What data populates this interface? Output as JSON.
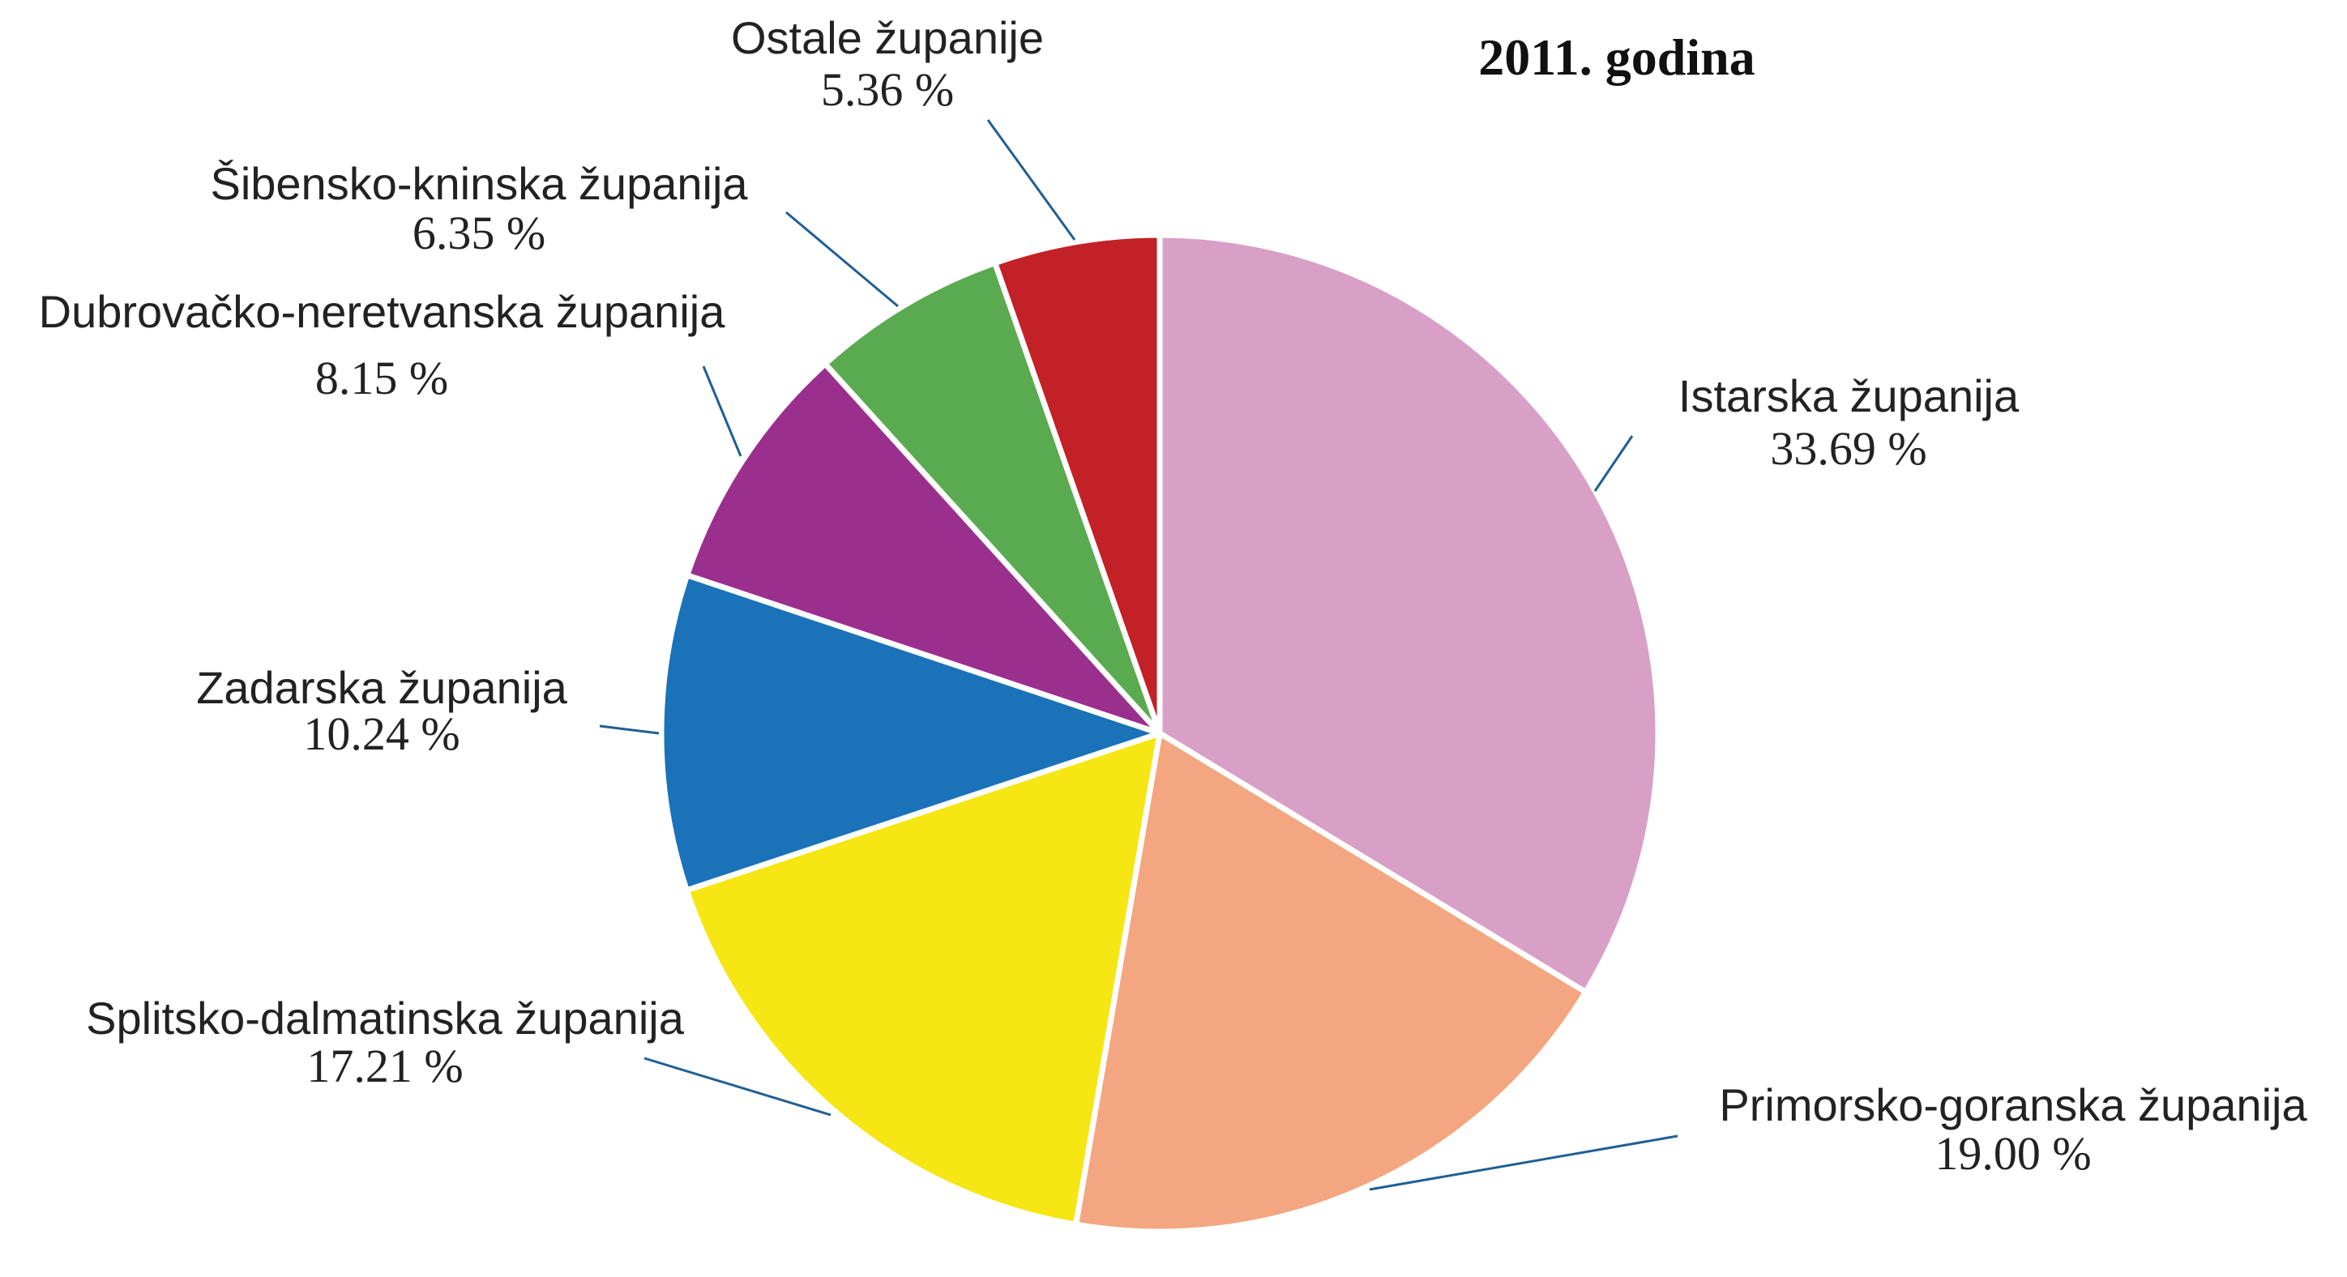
{
  "chart_data": {
    "type": "pie",
    "title": "2011. godina",
    "categories": [
      "Istarska županija",
      "Primorsko-goranska županija",
      "Splitsko-dalmatinska županija",
      "Zadarska županija",
      "Dubrovačko-neretvanska županija",
      "Šibensko-kninska županija",
      "Ostale županije"
    ],
    "values": [
      33.69,
      19.0,
      17.21,
      10.24,
      8.15,
      6.35,
      5.36
    ],
    "value_labels": [
      "33.69 %",
      "19.00 %",
      "17.21 %",
      "10.24 %",
      "8.15 %",
      "6.35 %",
      "5.36 %"
    ],
    "colors": [
      "#d8a0c6",
      "#f3a67f",
      "#f5e614",
      "#1a72b8",
      "#9b2f8e",
      "#5aaa4f",
      "#c22127"
    ]
  }
}
